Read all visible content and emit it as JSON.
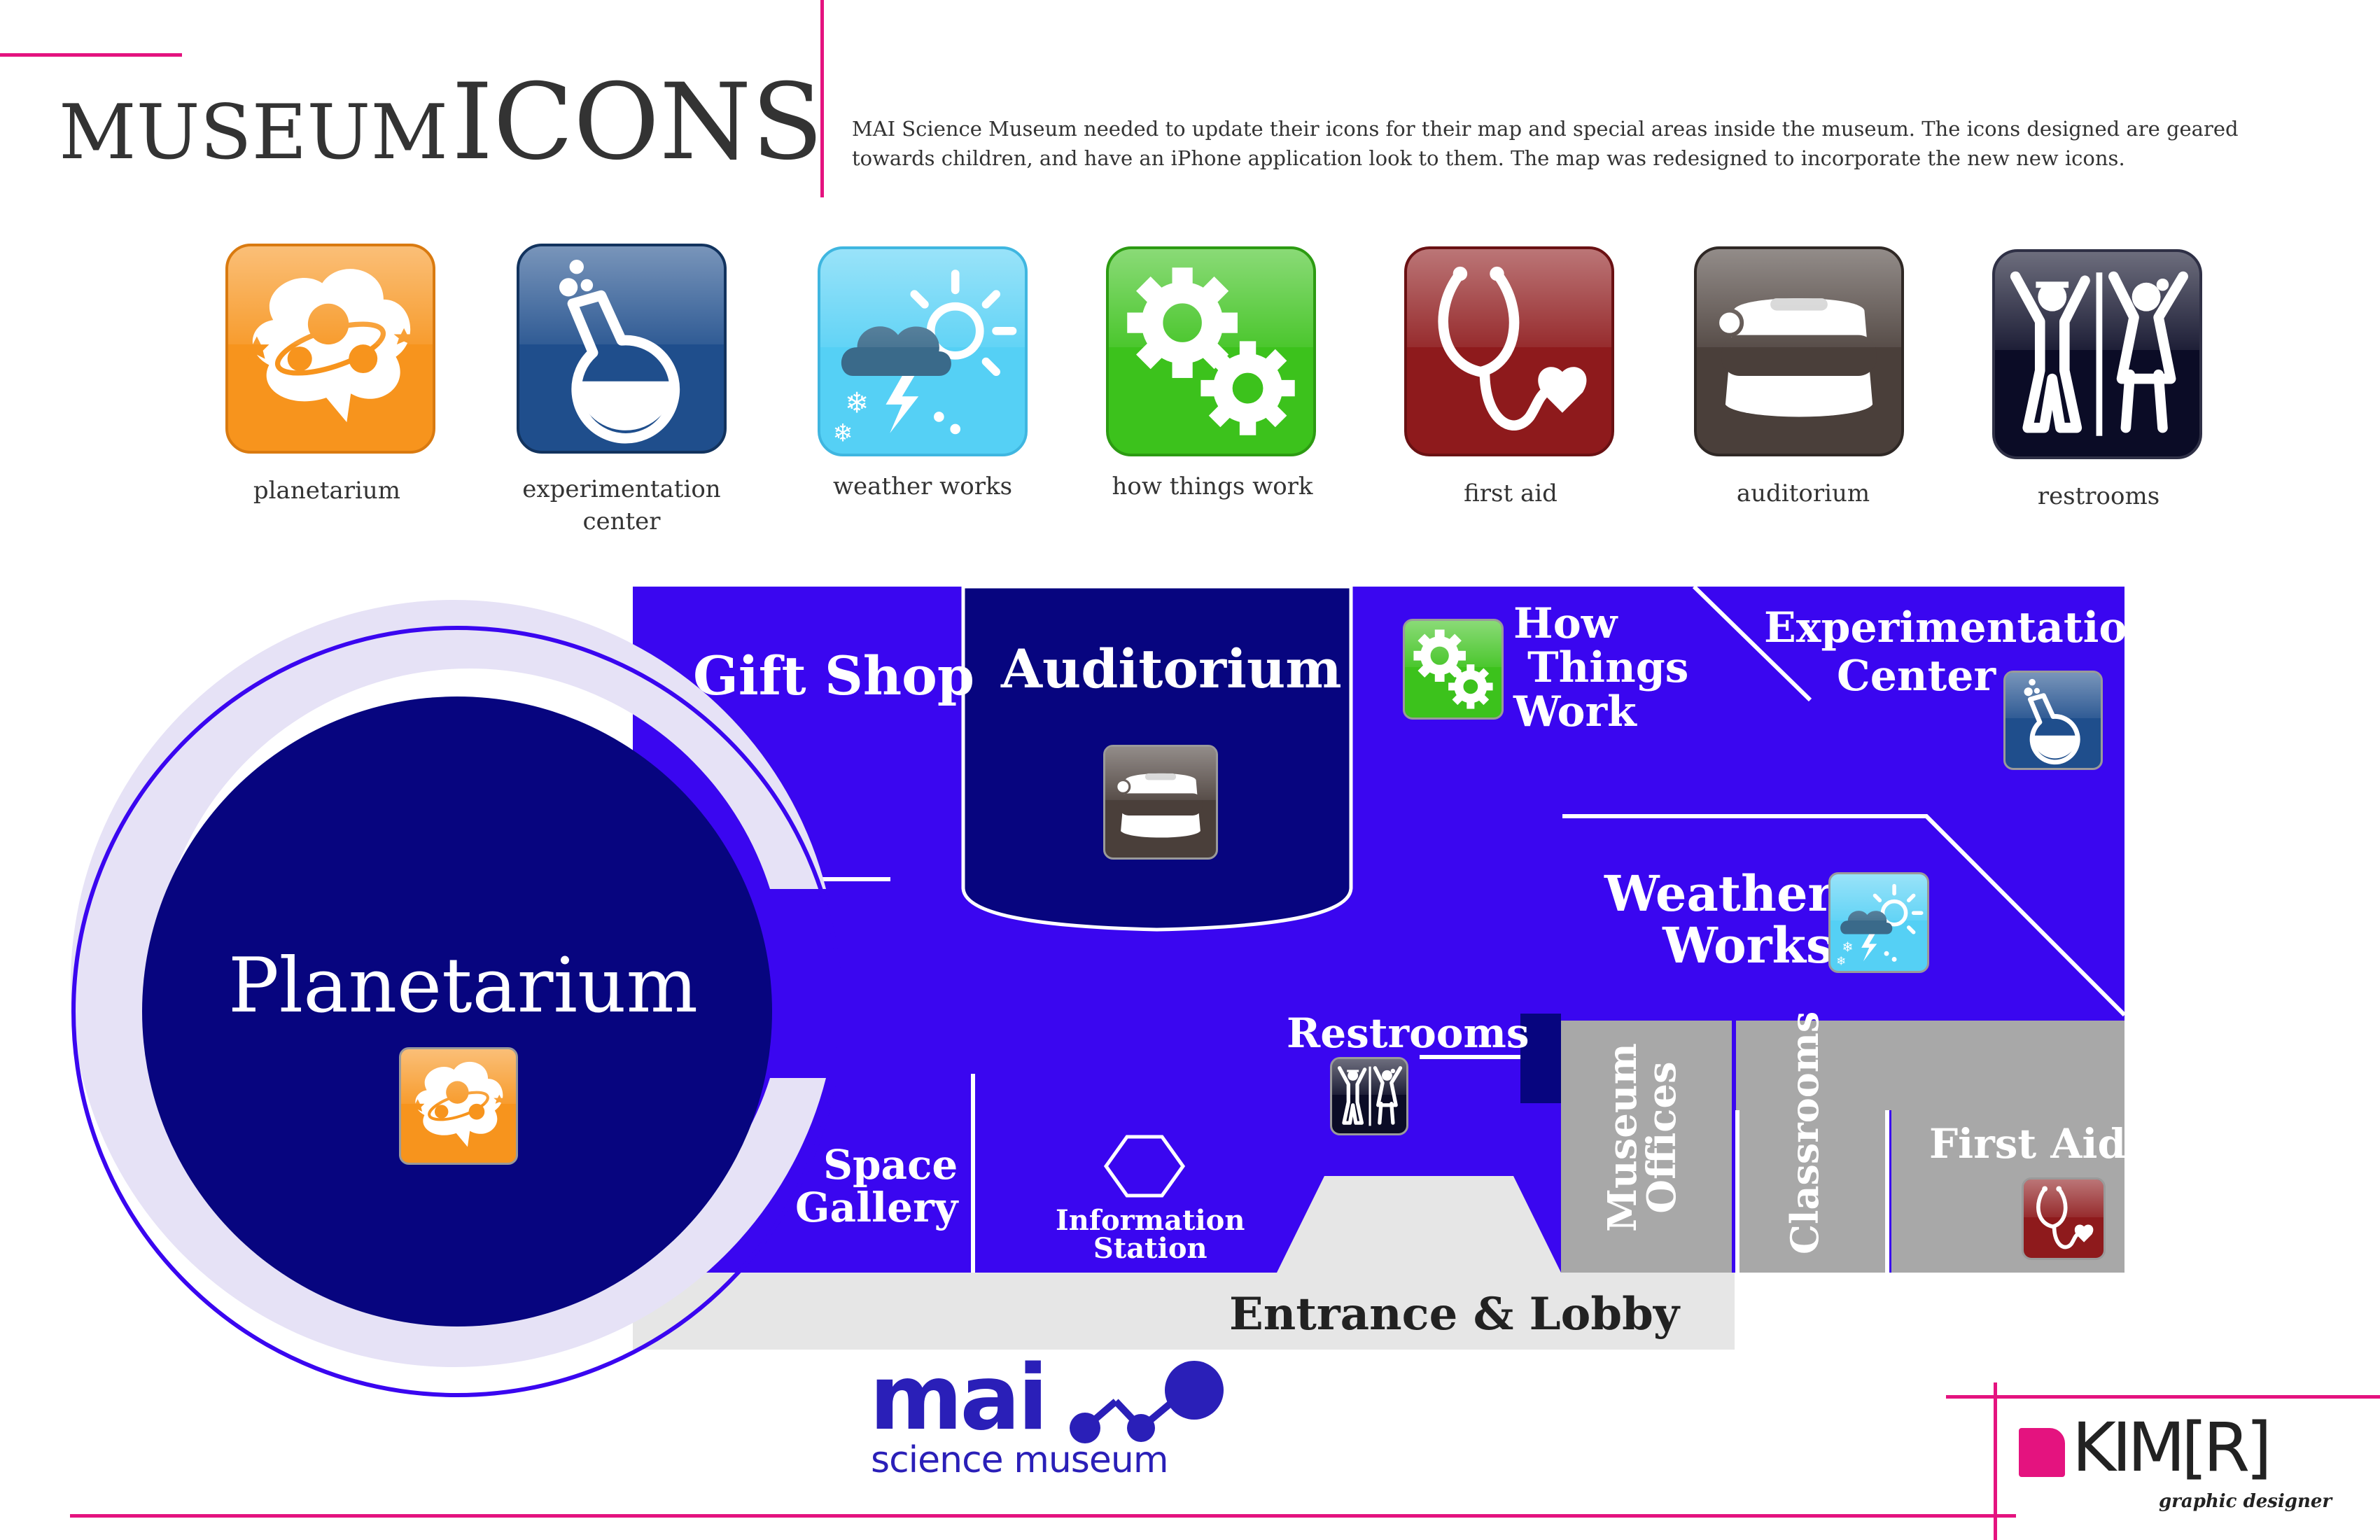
{
  "header": {
    "title_word1": "MUSEUM",
    "title_word2": "ICONS",
    "description": "MAI Science Museum needed to update their icons for their map and special areas inside the museum. The icons designed are geared towards children, and have an iPhone application look to them. The map was redesigned to incorporate the new new icons."
  },
  "icons": [
    {
      "label": "planetarium",
      "icon": "planetarium-icon",
      "color": "#f7941d"
    },
    {
      "label": "experimentation center",
      "icon": "flask-icon",
      "color": "#1f4e8c"
    },
    {
      "label": "weather works",
      "icon": "weather-icon",
      "color": "#55d0f5"
    },
    {
      "label": "how things work",
      "icon": "gears-icon",
      "color": "#3cc21c"
    },
    {
      "label": "first aid",
      "icon": "stethoscope-icon",
      "color": "#8e1a1c"
    },
    {
      "label": "auditorium",
      "icon": "viewmaster-icon",
      "color": "#4a3f3a"
    },
    {
      "label": "restrooms",
      "icon": "restroom-icon",
      "color": "#0b0c26"
    }
  ],
  "map": {
    "planetarium": "Planetarium",
    "gift_shop": "Gift Shop",
    "auditorium": "Auditorium",
    "how_things_work_1": "How",
    "how_things_work_2": "Things",
    "how_things_work_3": "Work",
    "experimentation_1": "Experimentation",
    "experimentation_2": "Center",
    "weather_1": "Weather",
    "weather_2": "Works",
    "restrooms": "Restrooms",
    "space_gallery_1": "Space",
    "space_gallery_2": "Gallery",
    "info_1": "Information",
    "info_2": "Station",
    "museum_offices_1": "Museum",
    "museum_offices_2": "Offices",
    "classrooms": "Classrooms",
    "first_aid": "First Aid",
    "entrance": "Entrance & Lobby"
  },
  "museum_logo": {
    "name": "mai",
    "subtitle": "science museum"
  },
  "designer": {
    "name": "KIM[R]",
    "role": "graphic designer"
  },
  "colors": {
    "map_blue": "#3a06f0",
    "map_navy": "#07057f",
    "gray_room": "#a8a8a8",
    "lobby": "#e6e6e6",
    "pink": "#e4137f",
    "ring": "#e6e2f6"
  }
}
